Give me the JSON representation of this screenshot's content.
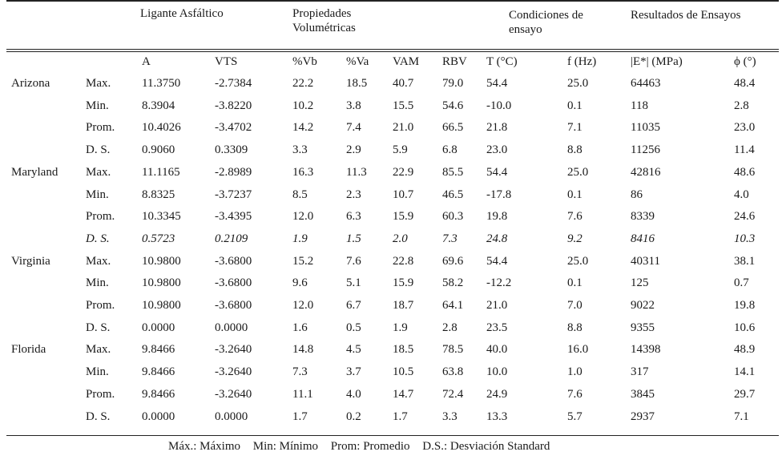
{
  "header_groups": {
    "ligante": "Ligante Asfáltico",
    "propiedades_line1": "Propiedades",
    "propiedades_line2": "Volumétricas",
    "condiciones_line1": "Condiciones de",
    "condiciones_line2": "ensayo",
    "resultados": "Resultados de Ensayos"
  },
  "columns": [
    "A",
    "VTS",
    "%Vb",
    "%Va",
    "VAM",
    "RBV",
    "T (°C)",
    "f (Hz)",
    "|E*| (MPa)",
    "ϕ (°)"
  ],
  "rows": [
    {
      "state": "Arizona",
      "stat": "Max.",
      "cells": [
        "11.3750",
        "-2.7384",
        "22.2",
        "18.5",
        "40.7",
        "79.0",
        "54.4",
        "25.0",
        "64463",
        "48.4"
      ]
    },
    {
      "state": "",
      "stat": "Min.",
      "cells": [
        "8.3904",
        "-3.8220",
        "10.2",
        "3.8",
        "15.5",
        "54.6",
        "-10.0",
        "0.1",
        "118",
        "2.8"
      ]
    },
    {
      "state": "",
      "stat": "Prom.",
      "cells": [
        "10.4026",
        "-3.4702",
        "14.2",
        "7.4",
        "21.0",
        "66.5",
        "21.8",
        "7.1",
        "11035",
        "23.0"
      ]
    },
    {
      "state": "",
      "stat": "D. S.",
      "cells": [
        "0.9060",
        "0.3309",
        "3.3",
        "2.9",
        "5.9",
        "6.8",
        "23.0",
        "8.8",
        "11256",
        "11.4"
      ]
    },
    {
      "state": "Maryland",
      "stat": "Max.",
      "cells": [
        "11.1165",
        "-2.8989",
        "16.3",
        "11.3",
        "22.9",
        "85.5",
        "54.4",
        "25.0",
        "42816",
        "48.6"
      ]
    },
    {
      "state": "",
      "stat": "Min.",
      "cells": [
        "8.8325",
        "-3.7237",
        "8.5",
        "2.3",
        "10.7",
        "46.5",
        "-17.8",
        "0.1",
        "86",
        "4.0"
      ]
    },
    {
      "state": "",
      "stat": "Prom.",
      "cells": [
        "10.3345",
        "-3.4395",
        "12.0",
        "6.3",
        "15.9",
        "60.3",
        "19.8",
        "7.6",
        "8339",
        "24.6"
      ]
    },
    {
      "state": "",
      "stat": "D. S.",
      "cells": [
        "0.5723",
        "0.2109",
        "1.9",
        "1.5",
        "2.0",
        "7.3",
        "24.8",
        "9.2",
        "8416",
        "10.3"
      ]
    },
    {
      "state": "Virginia",
      "stat": "Max.",
      "cells": [
        "10.9800",
        "-3.6800",
        "15.2",
        "7.6",
        "22.8",
        "69.6",
        "54.4",
        "25.0",
        "40311",
        "38.1"
      ]
    },
    {
      "state": "",
      "stat": "Min.",
      "cells": [
        "10.9800",
        "-3.6800",
        "9.6",
        "5.1",
        "15.9",
        "58.2",
        "-12.2",
        "0.1",
        "125",
        "0.7"
      ]
    },
    {
      "state": "",
      "stat": "Prom.",
      "cells": [
        "10.9800",
        "-3.6800",
        "12.0",
        "6.7",
        "18.7",
        "64.1",
        "21.0",
        "7.0",
        "9022",
        "19.8"
      ]
    },
    {
      "state": "",
      "stat": "D. S.",
      "cells": [
        "0.0000",
        "0.0000",
        "1.6",
        "0.5",
        "1.9",
        "2.8",
        "23.5",
        "8.8",
        "9355",
        "10.6"
      ]
    },
    {
      "state": "Florida",
      "stat": "Max.",
      "cells": [
        "9.8466",
        "-3.2640",
        "14.8",
        "4.5",
        "18.5",
        "78.5",
        "40.0",
        "16.0",
        "14398",
        "48.9"
      ]
    },
    {
      "state": "",
      "stat": "Min.",
      "cells": [
        "9.8466",
        "-3.2640",
        "7.3",
        "3.7",
        "10.5",
        "63.8",
        "10.0",
        "1.0",
        "317",
        "14.1"
      ]
    },
    {
      "state": "",
      "stat": "Prom.",
      "cells": [
        "9.8466",
        "-3.2640",
        "11.1",
        "4.0",
        "14.7",
        "72.4",
        "24.9",
        "7.6",
        "3845",
        "29.7"
      ]
    },
    {
      "state": "",
      "stat": "D. S.",
      "cells": [
        "0.0000",
        "0.0000",
        "1.7",
        "0.2",
        "1.7",
        "3.3",
        "13.3",
        "5.7",
        "2937",
        "7.1"
      ]
    }
  ],
  "footer": {
    "max": "Máx.: Máximo",
    "min": "Min: Mínimo",
    "prom": "Prom: Promedio",
    "ds": "D.S.: Desviación Standard"
  }
}
